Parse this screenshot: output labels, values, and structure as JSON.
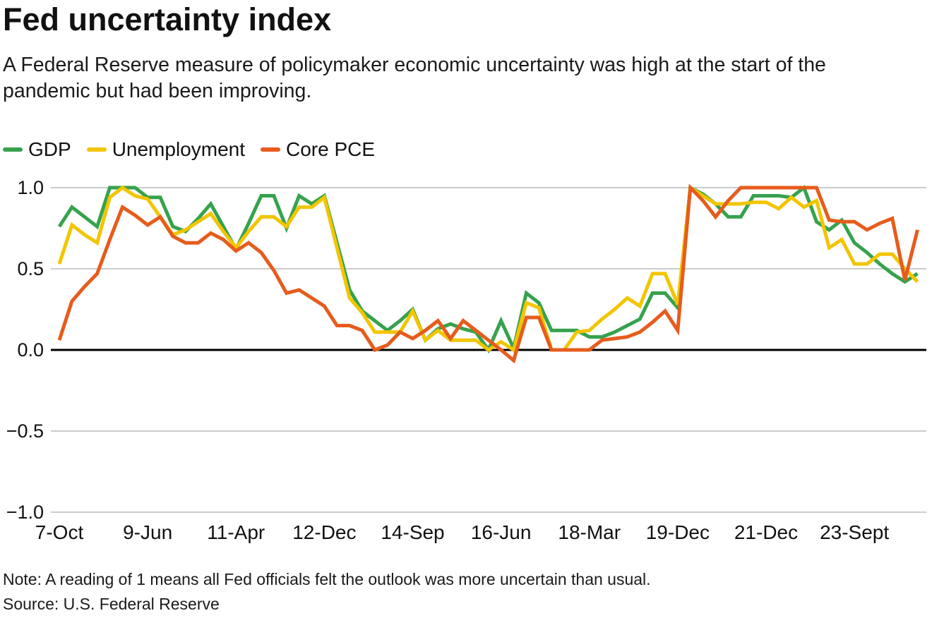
{
  "title": "Fed uncertainty index",
  "subtitle": "A Federal Reserve measure of policymaker economic uncertainty was high at the start of the pandemic but had been improving.",
  "note": "Note: A reading of 1 means all Fed officials felt the outlook was more uncertain than usual.",
  "source": "Source: U.S. Federal Reserve",
  "chart_data": {
    "type": "line",
    "title": "Fed uncertainty index",
    "xlabel": "",
    "ylabel": "",
    "ylim": [
      -1.0,
      1.0
    ],
    "y_ticks": [
      "1.0",
      "0.5",
      "0.0",
      "−0.5",
      "−1.0"
    ],
    "y_tick_values": [
      1.0,
      0.5,
      0.0,
      -0.5,
      -1.0
    ],
    "grid": "horizontal",
    "zero_line_color": "#000000",
    "grid_color": "#cccccc",
    "legend_position": "top-left",
    "x_tick_labels": [
      "7-Oct",
      "9-Jun",
      "11-Apr",
      "12-Dec",
      "14-Sep",
      "16-Jun",
      "18-Mar",
      "19-Dec",
      "21-Dec",
      "23-Sept"
    ],
    "x_tick_point_indices": [
      0,
      7,
      14,
      21,
      28,
      35,
      42,
      49,
      56,
      63
    ],
    "series": [
      {
        "name": "GDP",
        "color": "#36A24D",
        "values": [
          0.76,
          0.88,
          0.82,
          0.76,
          1.0,
          1.0,
          1.0,
          0.94,
          0.94,
          0.76,
          0.73,
          0.81,
          0.9,
          0.76,
          0.62,
          0.78,
          0.95,
          0.95,
          0.75,
          0.95,
          0.9,
          0.95,
          0.66,
          0.37,
          0.24,
          0.18,
          0.12,
          0.18,
          0.25,
          0.06,
          0.13,
          0.16,
          0.13,
          0.11,
          0.0,
          0.18,
          0.01,
          0.35,
          0.29,
          0.12,
          0.12,
          0.12,
          0.08,
          0.08,
          0.11,
          0.15,
          0.19,
          0.35,
          0.35,
          0.26,
          1.0,
          0.96,
          0.9,
          0.82,
          0.82,
          0.95,
          0.95,
          0.95,
          0.94,
          1.0,
          0.79,
          0.74,
          0.8,
          0.66,
          0.6,
          0.53,
          0.47,
          0.42,
          0.47
        ]
      },
      {
        "name": "Unemployment",
        "color": "#F2C500",
        "values": [
          0.53,
          0.77,
          0.71,
          0.66,
          0.94,
          1.0,
          0.95,
          0.93,
          0.82,
          0.71,
          0.74,
          0.79,
          0.84,
          0.73,
          0.63,
          0.73,
          0.82,
          0.82,
          0.76,
          0.88,
          0.88,
          0.94,
          0.63,
          0.32,
          0.23,
          0.11,
          0.11,
          0.11,
          0.24,
          0.06,
          0.12,
          0.06,
          0.06,
          0.06,
          0.0,
          0.05,
          0.0,
          0.29,
          0.26,
          0.0,
          0.0,
          0.11,
          0.12,
          0.19,
          0.25,
          0.32,
          0.27,
          0.47,
          0.47,
          0.28,
          1.0,
          0.95,
          0.9,
          0.9,
          0.9,
          0.91,
          0.91,
          0.87,
          0.94,
          0.88,
          0.92,
          0.63,
          0.68,
          0.53,
          0.53,
          0.59,
          0.59,
          0.5,
          0.42
        ]
      },
      {
        "name": "Core PCE",
        "color": "#E65C1C",
        "values": [
          0.06,
          0.3,
          0.39,
          0.47,
          0.68,
          0.88,
          0.83,
          0.77,
          0.82,
          0.7,
          0.66,
          0.66,
          0.72,
          0.68,
          0.61,
          0.66,
          0.6,
          0.49,
          0.35,
          0.37,
          0.32,
          0.27,
          0.15,
          0.15,
          0.12,
          0.0,
          0.03,
          0.11,
          0.07,
          0.12,
          0.18,
          0.07,
          0.18,
          0.12,
          0.06,
          0.0,
          -0.065,
          0.2,
          0.2,
          0.0,
          0.0,
          0.0,
          0.0,
          0.06,
          0.07,
          0.08,
          0.11,
          0.17,
          0.24,
          0.12,
          1.0,
          0.92,
          0.82,
          0.92,
          1.0,
          1.0,
          1.0,
          1.0,
          1.0,
          1.0,
          1.0,
          0.8,
          0.79,
          0.79,
          0.74,
          0.78,
          0.81,
          0.43,
          0.74
        ]
      }
    ]
  }
}
